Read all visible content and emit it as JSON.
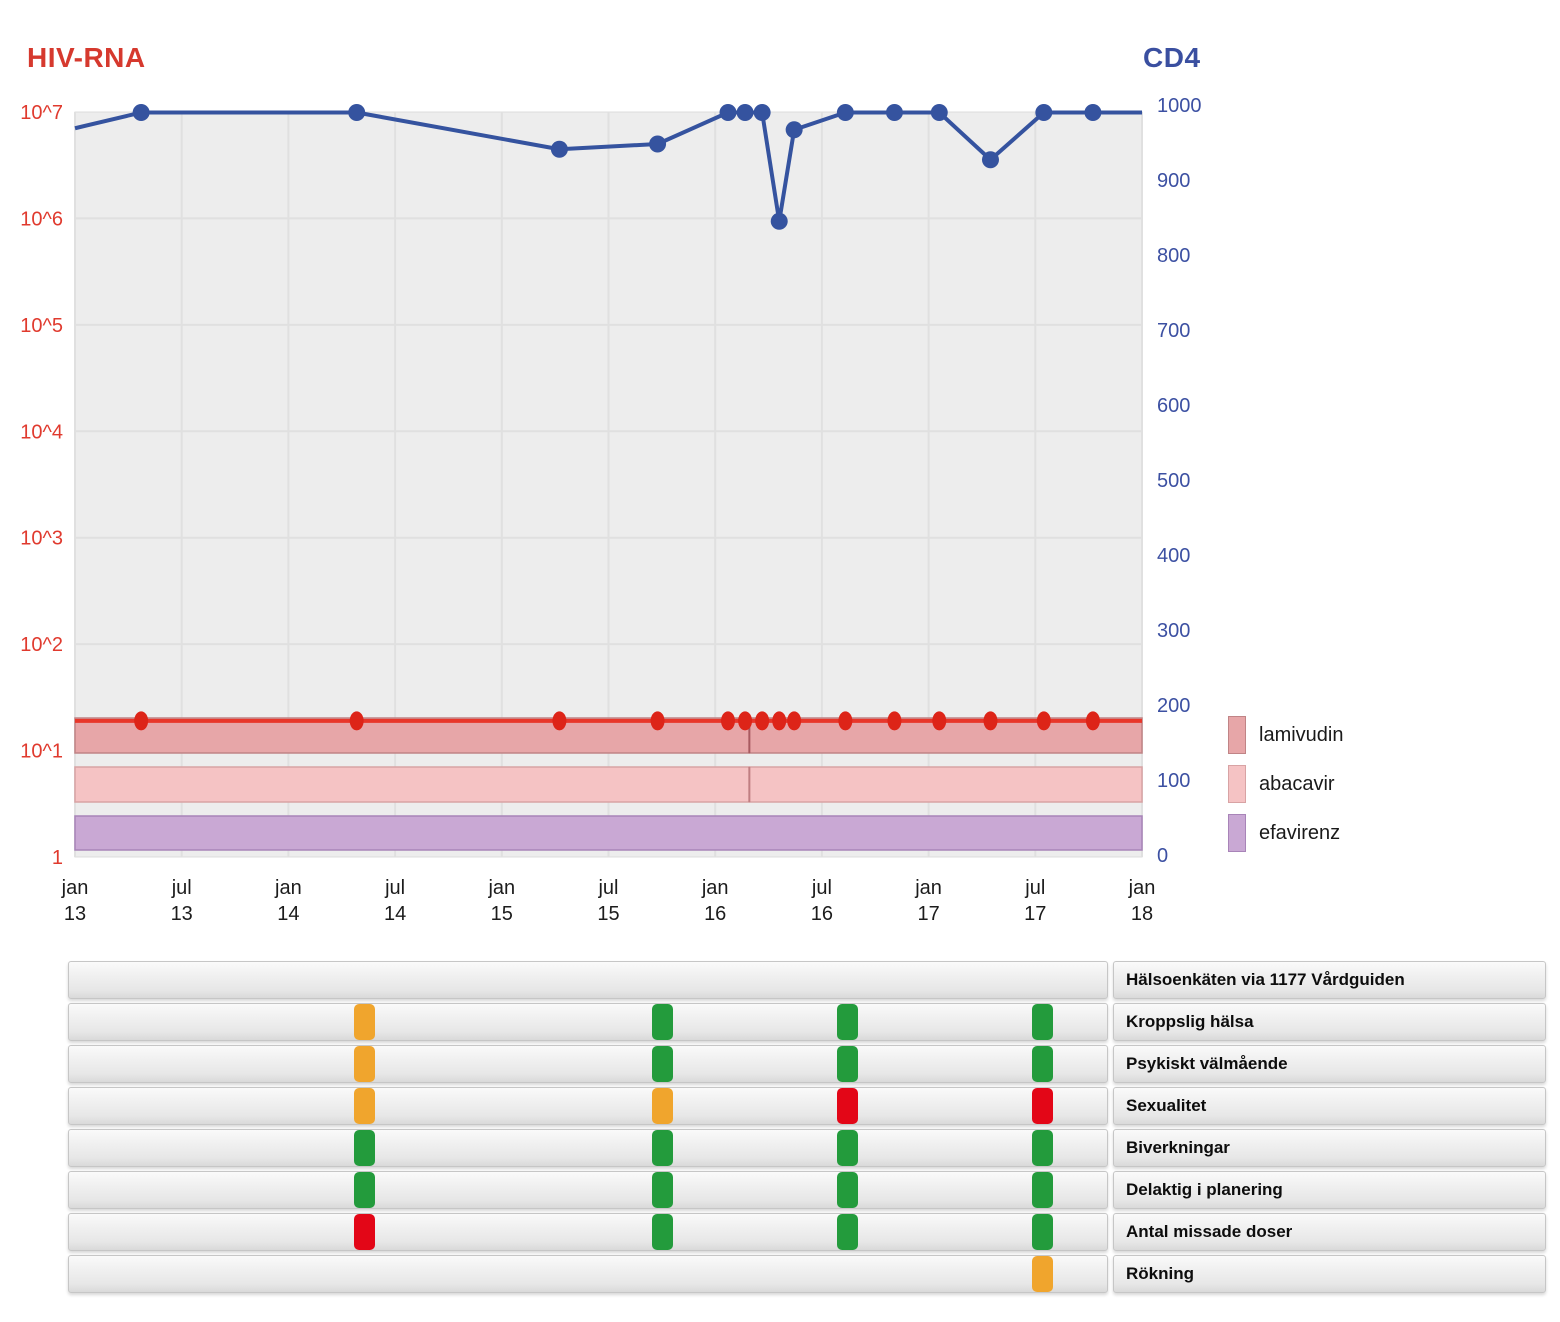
{
  "titles": {
    "left": "HIV-RNA",
    "right": "CD4"
  },
  "title_colors": {
    "left": "#d6392e",
    "right": "#3a4fa0"
  },
  "chart_data": {
    "type": "line",
    "x_range_years": [
      2013.0,
      2018.0
    ],
    "x": [
      2013.31,
      2014.32,
      2015.27,
      2015.73,
      2016.06,
      2016.14,
      2016.22,
      2016.3,
      2016.37,
      2016.61,
      2016.84,
      2017.05,
      2017.29,
      2017.54,
      2017.77
    ],
    "series": [
      {
        "name": "CD4",
        "axis": "right",
        "color": "#35539f",
        "marker_color": "#35539f",
        "values": [
          990,
          990,
          941,
          948,
          990,
          990,
          990,
          845,
          967,
          990,
          990,
          990,
          927,
          990,
          990
        ],
        "edge_start": {
          "x": 2013.0,
          "value": 969
        },
        "edge_end": {
          "x": 2018.0,
          "value": 990
        }
      },
      {
        "name": "HIV-RNA",
        "axis": "left",
        "color": "#e8362a",
        "marker_color": "#dd2418",
        "values": [
          19,
          19,
          19,
          19,
          19,
          19,
          19,
          19,
          19,
          19,
          19,
          19,
          19,
          19,
          19
        ],
        "note": "constant line just below detection limit"
      }
    ],
    "left_axis": {
      "title": "HIV-RNA",
      "type": "log",
      "color": "#e03a2e",
      "ticks": [
        "10^7",
        "10^6",
        "10^5",
        "10^4",
        "10^3",
        "10^2",
        "10^1",
        "1"
      ],
      "range": [
        1,
        10000000
      ]
    },
    "right_axis": {
      "title": "CD4",
      "type": "linear",
      "color": "#3c50a2",
      "ticks": [
        1000,
        900,
        800,
        700,
        600,
        500,
        400,
        300,
        200,
        100,
        0
      ],
      "range": [
        0,
        1000
      ]
    },
    "x_axis": {
      "ticks": [
        {
          "month": "jan",
          "year": "13"
        },
        {
          "month": "jul",
          "year": "13"
        },
        {
          "month": "jan",
          "year": "14"
        },
        {
          "month": "jul",
          "year": "14"
        },
        {
          "month": "jan",
          "year": "15"
        },
        {
          "month": "jul",
          "year": "15"
        },
        {
          "month": "jan",
          "year": "16"
        },
        {
          "month": "jul",
          "year": "16"
        },
        {
          "month": "jan",
          "year": "17"
        },
        {
          "month": "jul",
          "year": "17"
        },
        {
          "month": "jan",
          "year": "18"
        }
      ],
      "label_color": "#1c1c1c"
    },
    "grid": true,
    "plot_background": "#ededed",
    "grid_color": "#e0e0e0",
    "medications": [
      {
        "name": "lamivudin",
        "fill": "#e7a6a8",
        "stroke": "#c08486",
        "boundary_color": "#a85a60",
        "segments": [
          [
            2013.0,
            2016.16
          ],
          [
            2016.16,
            2018.0
          ]
        ]
      },
      {
        "name": "abacavir",
        "fill": "#f5c3c4",
        "stroke": "#d8a3a4",
        "boundary_color": "#c07e82",
        "segments": [
          [
            2013.0,
            2016.16
          ],
          [
            2016.16,
            2018.0
          ]
        ]
      },
      {
        "name": "efavirenz",
        "fill": "#c9a8d4",
        "stroke": "#a884b8",
        "boundary_color": "#a884b8",
        "segments": [
          [
            2013.0,
            2018.0
          ]
        ]
      }
    ]
  },
  "legend": {
    "items": [
      {
        "label": "lamivudin",
        "fill": "#e7a6a8",
        "stroke": "#c08486"
      },
      {
        "label": "abacavir",
        "fill": "#f5c3c4",
        "stroke": "#d8a3a4"
      },
      {
        "label": "efavirenz",
        "fill": "#c9a8d4",
        "stroke": "#a884b8"
      }
    ]
  },
  "table": {
    "slot_fractions": [
      0.2837,
      0.5702,
      0.749,
      0.9356
    ],
    "rows": [
      {
        "label": "Hälsoenkäten via 1177 Vårdguiden",
        "chips": []
      },
      {
        "label": "Kroppslig hälsa",
        "chips": [
          {
            "slot": 0,
            "status": "warning"
          },
          {
            "slot": 1,
            "status": "ok"
          },
          {
            "slot": 2,
            "status": "ok"
          },
          {
            "slot": 3,
            "status": "ok"
          }
        ]
      },
      {
        "label": "Psykiskt välmående",
        "chips": [
          {
            "slot": 0,
            "status": "warning"
          },
          {
            "slot": 1,
            "status": "ok"
          },
          {
            "slot": 2,
            "status": "ok"
          },
          {
            "slot": 3,
            "status": "ok"
          }
        ]
      },
      {
        "label": "Sexualitet",
        "chips": [
          {
            "slot": 0,
            "status": "warning"
          },
          {
            "slot": 1,
            "status": "warning"
          },
          {
            "slot": 2,
            "status": "alert"
          },
          {
            "slot": 3,
            "status": "alert"
          }
        ]
      },
      {
        "label": "Biverkningar",
        "chips": [
          {
            "slot": 0,
            "status": "ok"
          },
          {
            "slot": 1,
            "status": "ok"
          },
          {
            "slot": 2,
            "status": "ok"
          },
          {
            "slot": 3,
            "status": "ok"
          }
        ]
      },
      {
        "label": "Delaktig i planering",
        "chips": [
          {
            "slot": 0,
            "status": "ok"
          },
          {
            "slot": 1,
            "status": "ok"
          },
          {
            "slot": 2,
            "status": "ok"
          },
          {
            "slot": 3,
            "status": "ok"
          }
        ]
      },
      {
        "label": "Antal missade doser",
        "chips": [
          {
            "slot": 0,
            "status": "alert"
          },
          {
            "slot": 1,
            "status": "ok"
          },
          {
            "slot": 2,
            "status": "ok"
          },
          {
            "slot": 3,
            "status": "ok"
          }
        ]
      },
      {
        "label": "Rökning",
        "chips": [
          {
            "slot": 3,
            "status": "warning"
          }
        ]
      }
    ]
  },
  "status_colors": {
    "ok": "#239b3c",
    "warning": "#f0a52d",
    "alert": "#e30617"
  }
}
